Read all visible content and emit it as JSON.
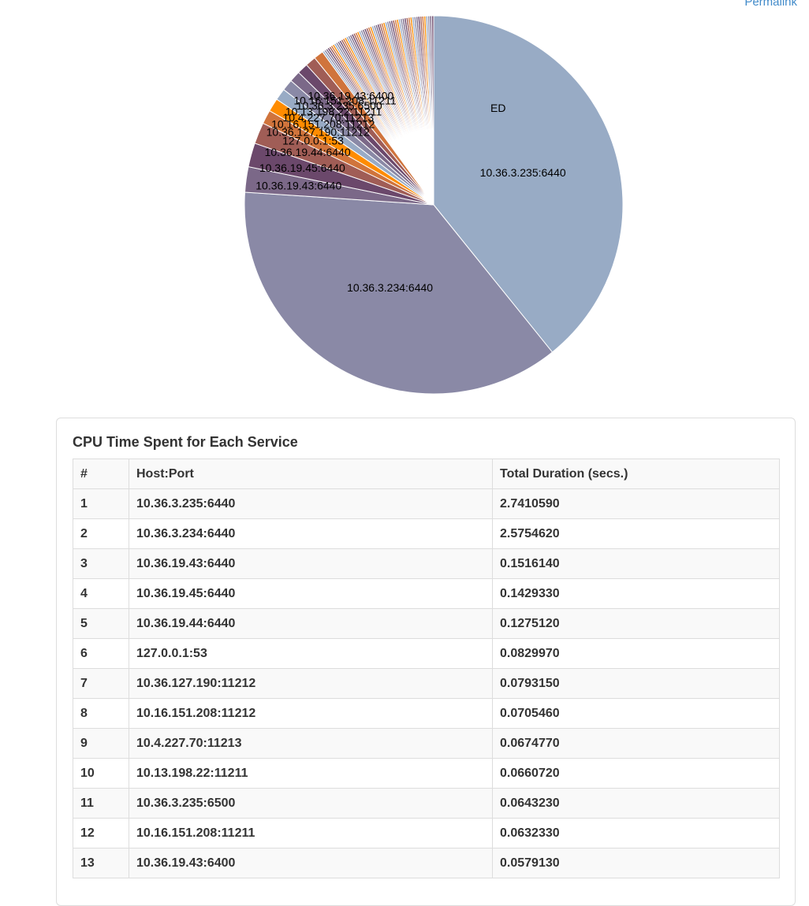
{
  "header": {
    "permalink_label": "Permalink"
  },
  "chart_data": {
    "type": "pie",
    "title": "",
    "slices": [
      {
        "label": "10.36.3.235:6440",
        "value": 2.741059,
        "color": "#98abc5"
      },
      {
        "label": "10.36.3.234:6440",
        "value": 2.575462,
        "color": "#8a89a6"
      },
      {
        "label": "10.36.19.43:6440",
        "value": 0.151614,
        "color": "#7b6888"
      },
      {
        "label": "10.36.19.45:6440",
        "value": 0.142933,
        "color": "#6b486b"
      },
      {
        "label": "10.36.19.44:6440",
        "value": 0.127512,
        "color": "#a05d56"
      },
      {
        "label": "127.0.0.1:53",
        "value": 0.082997,
        "color": "#d0743c"
      },
      {
        "label": "10.36.127.190:11212",
        "value": 0.079315,
        "color": "#ff8c00"
      },
      {
        "label": "10.16.151.208:11212",
        "value": 0.070546,
        "color": "#98abc5"
      },
      {
        "label": "10.4.227.70:11213",
        "value": 0.067477,
        "color": "#8a89a6"
      },
      {
        "label": "10.13.198.22:11211",
        "value": 0.066072,
        "color": "#7b6888"
      },
      {
        "label": "10.36.3.235:6500",
        "value": 0.064323,
        "color": "#6b486b"
      },
      {
        "label": "10.16.151.208:11211",
        "value": 0.063233,
        "color": "#a05d56"
      },
      {
        "label": "10.36.19.43:6400",
        "value": 0.057913,
        "color": "#d0743c"
      }
    ],
    "other_label": "ED"
  },
  "table": {
    "title": "CPU Time Spent for Each Service",
    "headers": [
      "#",
      "Host:Port",
      "Total Duration (secs.)"
    ],
    "rows": [
      [
        "1",
        "10.36.3.235:6440",
        "2.7410590"
      ],
      [
        "2",
        "10.36.3.234:6440",
        "2.5754620"
      ],
      [
        "3",
        "10.36.19.43:6440",
        "0.1516140"
      ],
      [
        "4",
        "10.36.19.45:6440",
        "0.1429330"
      ],
      [
        "5",
        "10.36.19.44:6440",
        "0.1275120"
      ],
      [
        "6",
        "127.0.0.1:53",
        "0.0829970"
      ],
      [
        "7",
        "10.36.127.190:11212",
        "0.0793150"
      ],
      [
        "8",
        "10.16.151.208:11212",
        "0.0705460"
      ],
      [
        "9",
        "10.4.227.70:11213",
        "0.0674770"
      ],
      [
        "10",
        "10.13.198.22:11211",
        "0.0660720"
      ],
      [
        "11",
        "10.36.3.235:6500",
        "0.0643230"
      ],
      [
        "12",
        "10.16.151.208:11211",
        "0.0632330"
      ],
      [
        "13",
        "10.36.19.43:6400",
        "0.0579130"
      ]
    ]
  }
}
